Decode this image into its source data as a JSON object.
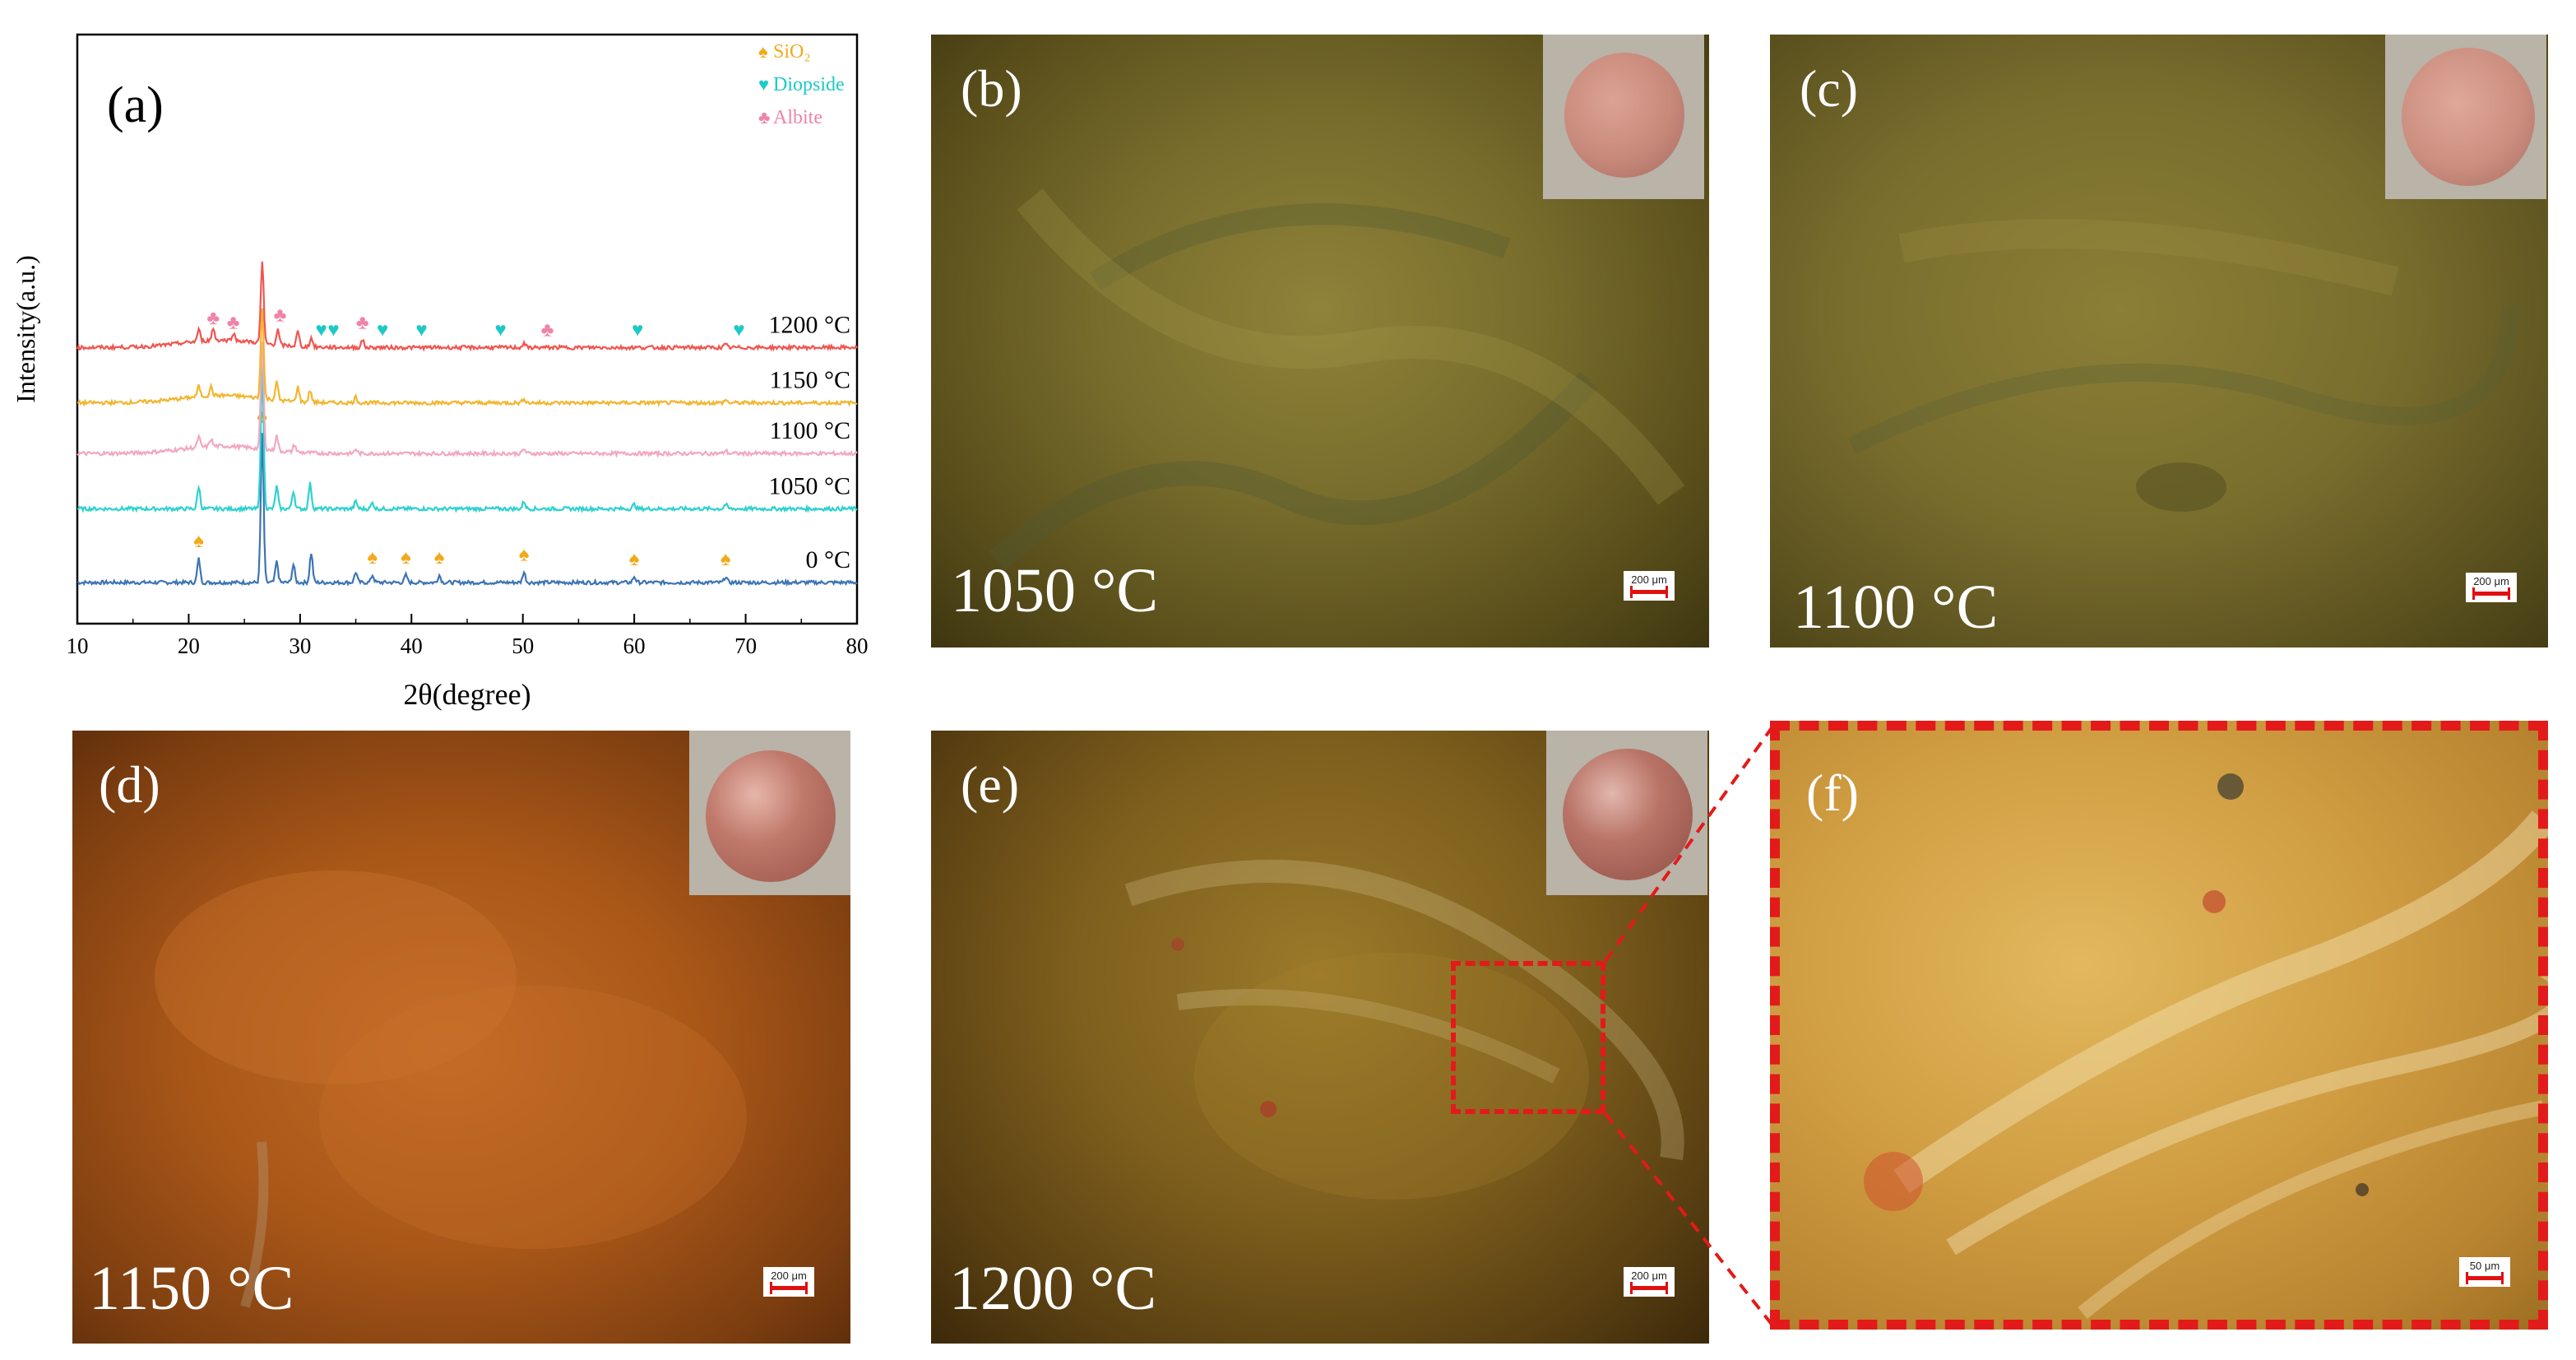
{
  "chart_data": {
    "type": "line",
    "panel_label": "(a)",
    "xlabel": "2θ(degree)",
    "ylabel": "Intensity(a.u.)",
    "xlim": [
      10,
      80
    ],
    "x_ticks": [
      10,
      20,
      30,
      40,
      50,
      60,
      70,
      80
    ],
    "y_ticks_shown": false,
    "grid": false,
    "legend_position": "top-right",
    "legend": [
      {
        "name": "SiO₂",
        "marker": "spade",
        "color": "#f2a91a"
      },
      {
        "name": "Diopside",
        "marker": "heart",
        "color": "#1dc9c7"
      },
      {
        "name": "Albite",
        "marker": "club",
        "color": "#ef84aa"
      }
    ],
    "series": [
      {
        "name": "0 °C",
        "color": "#3d74b5",
        "offset": 0,
        "peaks": [
          [
            20.9,
            0.16
          ],
          [
            26.6,
            1.0
          ],
          [
            27.9,
            0.14
          ],
          [
            29.4,
            0.12
          ],
          [
            31.0,
            0.2
          ],
          [
            35.0,
            0.07
          ],
          [
            36.5,
            0.05
          ],
          [
            39.5,
            0.05
          ],
          [
            42.5,
            0.05
          ],
          [
            50.1,
            0.07
          ],
          [
            60.0,
            0.04
          ],
          [
            68.2,
            0.04
          ]
        ],
        "markers": [
          {
            "x": 20.9,
            "phase": "SiO₂"
          },
          {
            "x": 26.6,
            "phase": "SiO₂"
          },
          {
            "x": 36.5,
            "phase": "SiO₂"
          },
          {
            "x": 39.5,
            "phase": "SiO₂"
          },
          {
            "x": 42.5,
            "phase": "SiO₂"
          },
          {
            "x": 50.1,
            "phase": "SiO₂"
          },
          {
            "x": 60.0,
            "phase": "SiO₂"
          },
          {
            "x": 68.2,
            "phase": "SiO₂"
          }
        ]
      },
      {
        "name": "1050 °C",
        "color": "#2ed1cf",
        "offset": 1.6,
        "peaks": [
          [
            20.9,
            0.15
          ],
          [
            26.6,
            0.95
          ],
          [
            27.9,
            0.15
          ],
          [
            29.4,
            0.12
          ],
          [
            30.9,
            0.17
          ],
          [
            35.0,
            0.05
          ],
          [
            36.5,
            0.04
          ],
          [
            50.1,
            0.05
          ],
          [
            60.0,
            0.03
          ],
          [
            68.2,
            0.03
          ]
        ],
        "markers": []
      },
      {
        "name": "1100 °C",
        "color": "#f2a8bf",
        "offset": 2.8,
        "peaks": [
          [
            20.9,
            0.07
          ],
          [
            22.0,
            0.05
          ],
          [
            26.6,
            0.72
          ],
          [
            27.9,
            0.1
          ],
          [
            29.5,
            0.05
          ],
          [
            35.0,
            0.03
          ],
          [
            50.1,
            0.03
          ],
          [
            68.2,
            0.02
          ]
        ],
        "markers": []
      },
      {
        "name": "1150 °C",
        "color": "#f3b52e",
        "offset": 3.9,
        "peaks": [
          [
            20.9,
            0.07
          ],
          [
            22.0,
            0.06
          ],
          [
            26.6,
            0.62
          ],
          [
            27.9,
            0.12
          ],
          [
            29.8,
            0.1
          ],
          [
            30.9,
            0.08
          ],
          [
            35.0,
            0.04
          ],
          [
            50.1,
            0.03
          ],
          [
            68.2,
            0.02
          ]
        ],
        "markers": []
      },
      {
        "name": "1200 °C",
        "color": "#f05550",
        "offset": 5.1,
        "peaks": [
          [
            20.9,
            0.08
          ],
          [
            22.2,
            0.08
          ],
          [
            24.0,
            0.05
          ],
          [
            26.6,
            0.55
          ],
          [
            28.0,
            0.1
          ],
          [
            29.8,
            0.1
          ],
          [
            31.0,
            0.06
          ],
          [
            35.6,
            0.05
          ],
          [
            50.1,
            0.03
          ],
          [
            68.2,
            0.02
          ]
        ],
        "markers": [
          {
            "x": 22.2,
            "phase": "Albite"
          },
          {
            "x": 24.0,
            "phase": "Albite"
          },
          {
            "x": 28.2,
            "phase": "Albite"
          },
          {
            "x": 31.9,
            "phase": "Diopside"
          },
          {
            "x": 33.0,
            "phase": "Diopside"
          },
          {
            "x": 35.6,
            "phase": "Albite"
          },
          {
            "x": 37.4,
            "phase": "Diopside"
          },
          {
            "x": 40.9,
            "phase": "Diopside"
          },
          {
            "x": 48.0,
            "phase": "Diopside"
          },
          {
            "x": 52.2,
            "phase": "Albite"
          },
          {
            "x": 60.3,
            "phase": "Diopside"
          },
          {
            "x": 69.4,
            "phase": "Diopside"
          }
        ]
      }
    ]
  },
  "panels": {
    "b": {
      "label": "(b)",
      "temperature": "1050 °C",
      "scale": "200 μm"
    },
    "c": {
      "label": "(c)",
      "temperature": "1100 °C",
      "scale": "200 μm"
    },
    "d": {
      "label": "(d)",
      "temperature": "1150 °C",
      "scale": "200 μm"
    },
    "e": {
      "label": "(e)",
      "temperature": "1200 °C",
      "scale": "200 μm"
    },
    "f": {
      "label": "(f)",
      "scale": "50 μm"
    }
  },
  "colors": {
    "b_bg": "#6a5e23",
    "c_bg": "#6d6128",
    "d_bg": "#a5521a",
    "e_bg": "#6b4b14",
    "f_bg": "#cf9b3e",
    "callout": "#e31a1a",
    "pellet_b": "#cf9081",
    "pellet_c": "#cf9585",
    "pellet_d": "#b86a5f",
    "pellet_e": "#b0685a"
  }
}
